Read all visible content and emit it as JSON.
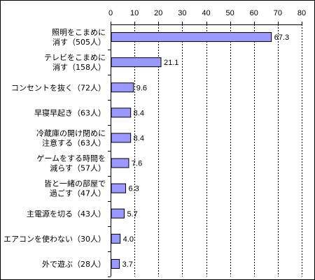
{
  "chart_data": {
    "type": "bar",
    "orientation": "horizontal",
    "categories": [
      [
        "照明をこまめに",
        "消す（505人）"
      ],
      [
        "テレビをこまめに",
        "消す（158人）"
      ],
      [
        "コンセントを抜く（72人）"
      ],
      [
        "早寝早起き（63人）"
      ],
      [
        "冷蔵庫の開け閉めに",
        "注意する（63人）"
      ],
      [
        "ゲームをする時間を",
        "減らす（57人）"
      ],
      [
        "皆と一緒の部屋で",
        "過ごす（47人）"
      ],
      [
        "主電源を切る（43人）"
      ],
      [
        "エアコンを使わない（30人）"
      ],
      [
        "外で遊ぶ（28人）"
      ]
    ],
    "values": [
      67.3,
      21.1,
      9.6,
      8.4,
      8.4,
      7.6,
      6.3,
      5.7,
      4.0,
      3.7
    ],
    "value_labels": [
      "67.3",
      "21.1",
      "9.6",
      "8.4",
      "8.4",
      "7.6",
      "6.3",
      "5.7",
      "4.0",
      "3.7"
    ],
    "xlim": [
      0,
      80
    ],
    "xticks": [
      0,
      10,
      20,
      30,
      40,
      50,
      60,
      70,
      80
    ],
    "tick_labels": [
      "0",
      "10",
      "20",
      "30",
      "40",
      "50",
      "60",
      "70",
      "80"
    ],
    "axis_position": "top",
    "grid": true,
    "legend": "none",
    "title": "",
    "xlabel": "",
    "ylabel": "",
    "colors": {
      "bar_fill": "#9999ff",
      "bar_stroke": "#000000",
      "grid": "#000000"
    }
  }
}
